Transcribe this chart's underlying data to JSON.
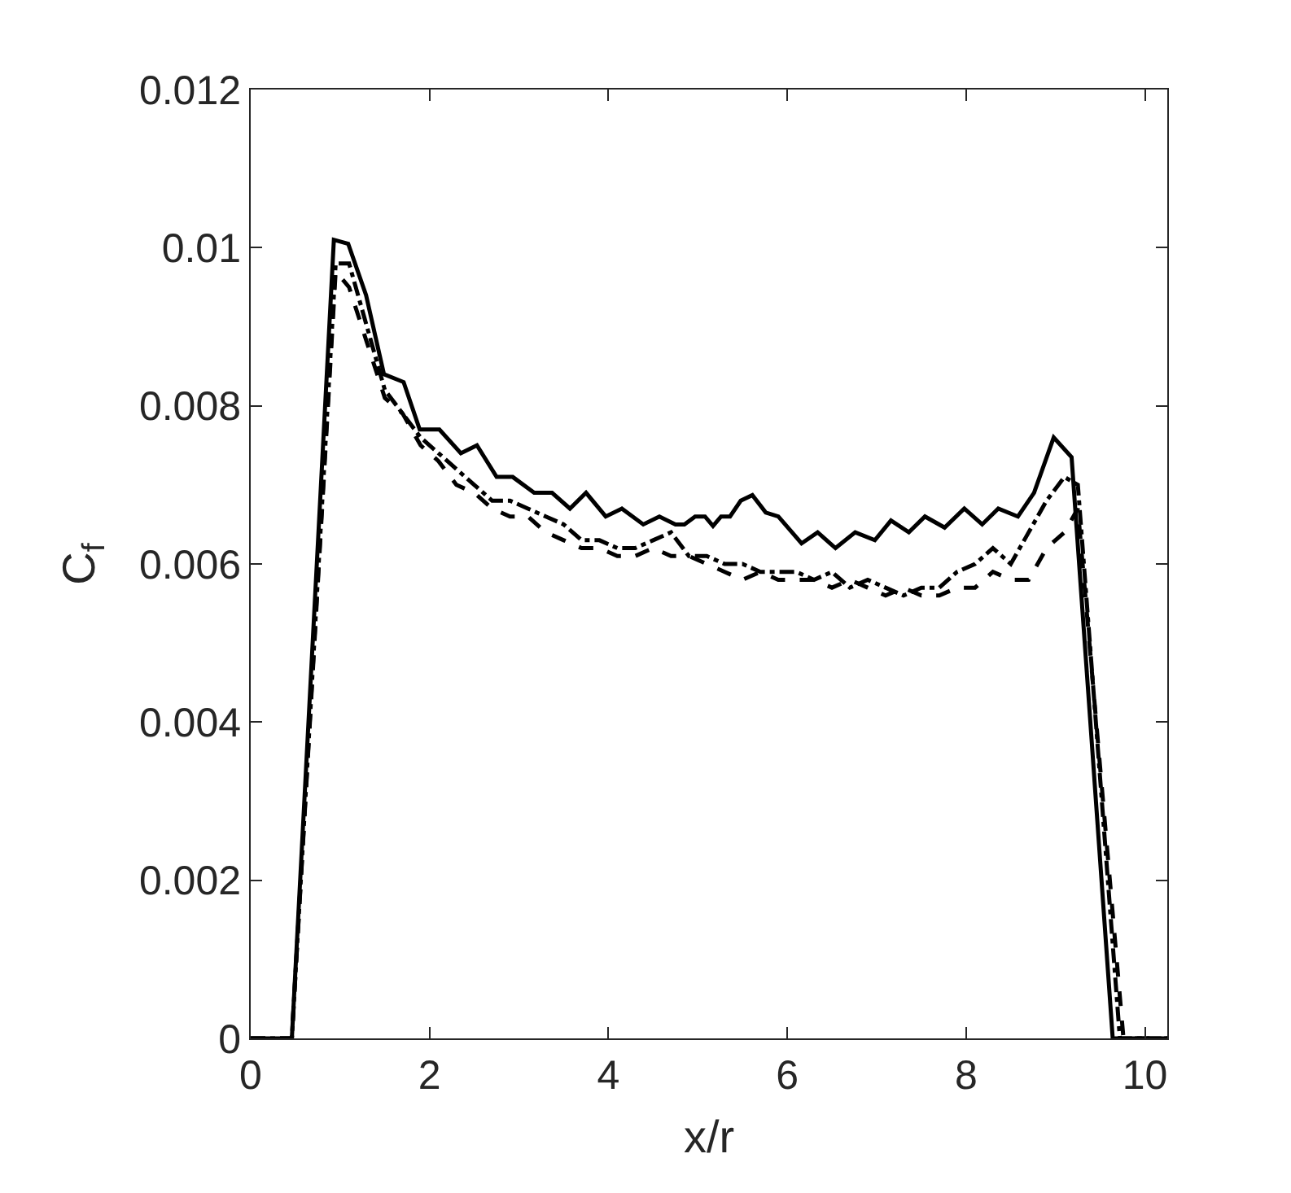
{
  "chart_data": {
    "type": "line",
    "xlabel": "x/r",
    "ylabel": "C$_{f}$",
    "xlim": [
      0,
      10.25
    ],
    "xticks": [
      0,
      2,
      4,
      6,
      8,
      10
    ],
    "ylim": [
      0,
      0.012
    ],
    "yticks": [
      0,
      0.002,
      0.004,
      0.006,
      0.008,
      0.01,
      0.012
    ],
    "marker": "none",
    "series": [
      {
        "color": "#000000",
        "line_style": "solid",
        "x": [
          0,
          0.46,
          0.93,
          1.09,
          1.29,
          1.49,
          1.71,
          1.89,
          2.11,
          2.35,
          2.53,
          2.75,
          2.93,
          3.17,
          3.37,
          3.57,
          3.75,
          3.97,
          4.15,
          4.39,
          4.57,
          4.75,
          4.85,
          4.97,
          5.08,
          5.17,
          5.26,
          5.36,
          5.48,
          5.61,
          5.76,
          5.9,
          6.16,
          6.34,
          6.54,
          6.76,
          6.98,
          7.16,
          7.36,
          7.54,
          7.76,
          7.98,
          8.18,
          8.36,
          8.58,
          8.76,
          8.98,
          9.18,
          9.64,
          10.25
        ],
        "values": [
          0,
          0,
          0.0101,
          0.01005,
          0.0094,
          0.0084,
          0.0083,
          0.0077,
          0.0077,
          0.0074,
          0.0075,
          0.0071,
          0.0071,
          0.0069,
          0.0069,
          0.0067,
          0.0069,
          0.0066,
          0.0067,
          0.0065,
          0.0066,
          0.0065,
          0.0065,
          0.0066,
          0.0066,
          0.00648,
          0.0066,
          0.0066,
          0.0068,
          0.00687,
          0.00665,
          0.0066,
          0.00626,
          0.0064,
          0.0062,
          0.0064,
          0.0063,
          0.00655,
          0.0064,
          0.0066,
          0.00646,
          0.0067,
          0.0065,
          0.0067,
          0.0066,
          0.0069,
          0.0076,
          0.00735,
          0,
          0
        ]
      },
      {
        "color": "#000000",
        "line_style": "dashdot",
        "x": [
          0,
          0.46,
          0.95,
          1.1,
          1.3,
          1.5,
          1.7,
          1.9,
          2.1,
          2.3,
          2.5,
          2.7,
          2.9,
          3.1,
          3.3,
          3.5,
          3.7,
          3.9,
          4.1,
          4.3,
          4.5,
          4.7,
          4.9,
          5.1,
          5.3,
          5.5,
          5.7,
          5.9,
          6.1,
          6.3,
          6.5,
          6.7,
          6.9,
          7.1,
          7.3,
          7.5,
          7.7,
          7.9,
          8.1,
          8.3,
          8.5,
          8.7,
          8.9,
          9.1,
          9.25,
          9.72,
          10.25
        ],
        "values": [
          0,
          0,
          0.0098,
          0.0098,
          0.009,
          0.0082,
          0.0079,
          0.0076,
          0.0074,
          0.0072,
          0.007,
          0.0068,
          0.0068,
          0.0067,
          0.0066,
          0.0065,
          0.0063,
          0.0063,
          0.0062,
          0.0062,
          0.0063,
          0.0064,
          0.0061,
          0.0061,
          0.006,
          0.006,
          0.0059,
          0.0059,
          0.0059,
          0.0058,
          0.0059,
          0.0057,
          0.0058,
          0.0057,
          0.0056,
          0.0057,
          0.0057,
          0.0059,
          0.006,
          0.0062,
          0.006,
          0.0064,
          0.0068,
          0.0071,
          0.007,
          0,
          0
        ]
      },
      {
        "color": "#000000",
        "line_style": "dashed",
        "x": [
          0,
          0.46,
          0.95,
          1.1,
          1.3,
          1.5,
          1.7,
          1.9,
          2.1,
          2.3,
          2.5,
          2.7,
          2.9,
          3.1,
          3.3,
          3.5,
          3.7,
          3.9,
          4.1,
          4.3,
          4.5,
          4.7,
          4.9,
          5.1,
          5.3,
          5.5,
          5.7,
          5.9,
          6.1,
          6.3,
          6.5,
          6.7,
          6.9,
          7.1,
          7.3,
          7.5,
          7.7,
          7.9,
          8.1,
          8.3,
          8.5,
          8.7,
          8.9,
          9.1,
          9.25,
          9.76,
          10.25
        ],
        "values": [
          0,
          0,
          0.0097,
          0.0095,
          0.0088,
          0.0081,
          0.0079,
          0.0075,
          0.0073,
          0.007,
          0.0069,
          0.0067,
          0.0066,
          0.0066,
          0.0064,
          0.0063,
          0.0062,
          0.0062,
          0.0061,
          0.0061,
          0.0062,
          0.0061,
          0.0061,
          0.006,
          0.0059,
          0.0058,
          0.0059,
          0.0058,
          0.0058,
          0.0058,
          0.0057,
          0.0058,
          0.0057,
          0.0056,
          0.0057,
          0.0056,
          0.0056,
          0.0057,
          0.0057,
          0.0059,
          0.0058,
          0.0058,
          0.0062,
          0.0064,
          0.0067,
          0,
          0
        ]
      }
    ]
  }
}
